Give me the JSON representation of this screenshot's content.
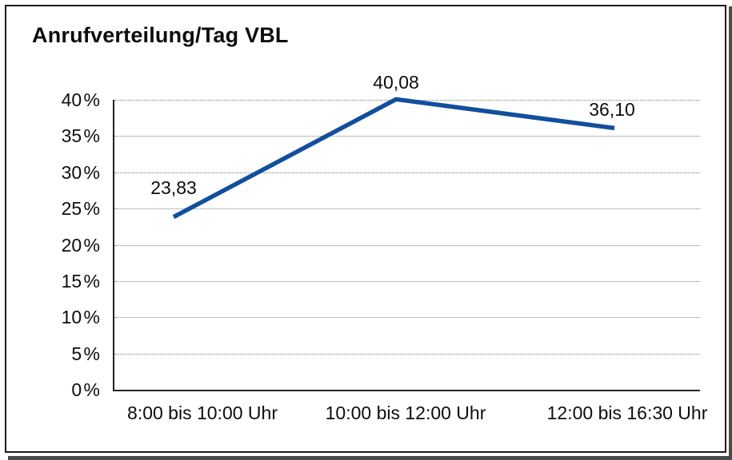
{
  "window": {
    "background_color": "#ffffff",
    "frame_border_color": "#1b1b1b",
    "shadow_color": "#4a4a4a"
  },
  "chart_data": {
    "type": "line",
    "title": "Anrufverteilung/Tag VBL",
    "categories": [
      "8:00 bis 10:00 Uhr",
      "10:00 bis 12:00 Uhr",
      "12:00 bis 16:30 Uhr"
    ],
    "series": [
      {
        "name": "Anrufverteilung",
        "values": [
          23.83,
          40.08,
          36.1
        ],
        "value_labels": [
          "23,83",
          "40,08",
          "36,10"
        ],
        "color": "#124f9c"
      }
    ],
    "xlabel": "",
    "ylabel": "",
    "ylim": [
      0,
      40
    ],
    "ytick_step": 5,
    "ytick_labels": [
      "0 %",
      "5 %",
      "10 %",
      "15 %",
      "20 %",
      "25 %",
      "30 %",
      "35 %",
      "40 %"
    ],
    "grid": "horizontal-dotted",
    "gridline_color": "#7c7c7c",
    "axis_color": "#222222",
    "legend": "none",
    "text_color": "#0d0d0d"
  }
}
